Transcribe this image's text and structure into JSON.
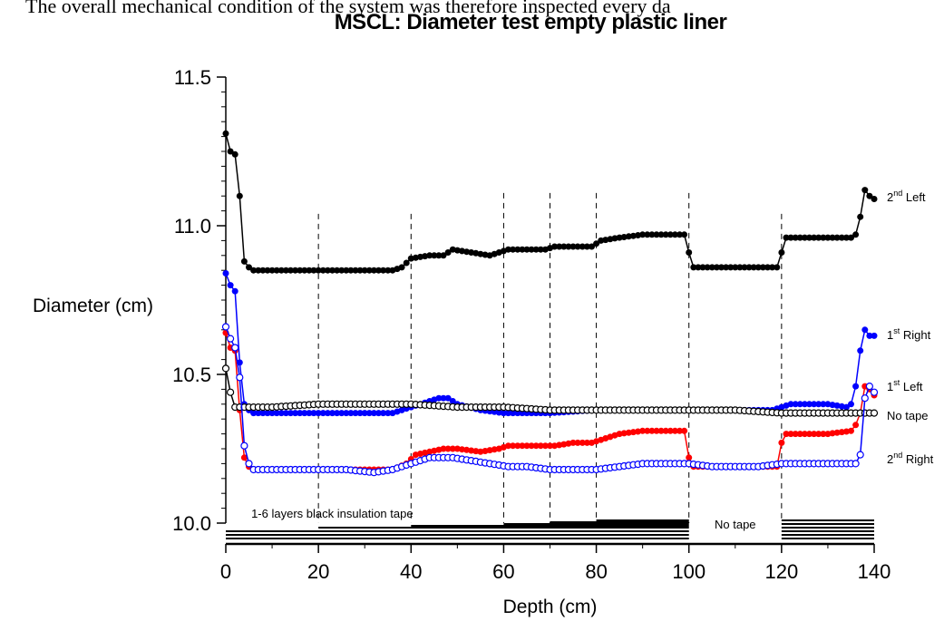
{
  "header_text": "The overall mechanical condition of the system was therefore inspected every da",
  "chart_data": {
    "type": "line",
    "title": "MSCL: Diameter test empty plastic liner",
    "xlabel": "Depth (cm)",
    "ylabel": "Diameter (cm)",
    "xlim": [
      0,
      140
    ],
    "ylim": [
      10.0,
      11.5
    ],
    "xticks": [
      "0",
      "20",
      "40",
      "60",
      "80",
      "100",
      "120",
      "140"
    ],
    "yticks": [
      "10.0",
      "10.5",
      "11.0",
      "11.5"
    ],
    "vlines": [
      20,
      40,
      60,
      70,
      80,
      100,
      120
    ],
    "annotations": {
      "tape": "1-6 layers black insulation tape",
      "notape": "No tape"
    },
    "series": [
      {
        "name": "2nd Left",
        "label_base": "2",
        "label_sup": "nd",
        "label_rest": " Left",
        "color": "#000000",
        "marker": "filled",
        "x": [
          0,
          1,
          2,
          3,
          4,
          5,
          6,
          10,
          20,
          30,
          36,
          38,
          40,
          44,
          47,
          49,
          53,
          57,
          59,
          61,
          65,
          69,
          71,
          75,
          79,
          81,
          85,
          90,
          95,
          99,
          100,
          101,
          105,
          110,
          115,
          119,
          120,
          121,
          125,
          130,
          135,
          136,
          137,
          138,
          139,
          140
        ],
        "y": [
          11.31,
          11.25,
          11.24,
          11.1,
          10.88,
          10.86,
          10.85,
          10.85,
          10.85,
          10.85,
          10.85,
          10.86,
          10.89,
          10.9,
          10.9,
          10.92,
          10.91,
          10.9,
          10.91,
          10.92,
          10.92,
          10.92,
          10.93,
          10.93,
          10.93,
          10.95,
          10.96,
          10.97,
          10.97,
          10.97,
          10.91,
          10.86,
          10.86,
          10.86,
          10.86,
          10.86,
          10.91,
          10.96,
          10.96,
          10.96,
          10.96,
          10.97,
          11.03,
          11.12,
          11.1,
          11.09
        ]
      },
      {
        "name": "1st Right",
        "label_base": "1",
        "label_sup": "st",
        "label_rest": " Right",
        "color": "#0000ff",
        "marker": "filled",
        "x": [
          0,
          1,
          2,
          3,
          4,
          5,
          6,
          10,
          20,
          30,
          36,
          40,
          44,
          46,
          48,
          50,
          55,
          60,
          70,
          80,
          90,
          100,
          110,
          118,
          120,
          122,
          126,
          130,
          134,
          135,
          136,
          137,
          138,
          139,
          140
        ],
        "y": [
          10.84,
          10.8,
          10.78,
          10.54,
          10.4,
          10.38,
          10.37,
          10.37,
          10.37,
          10.37,
          10.37,
          10.39,
          10.41,
          10.42,
          10.42,
          10.4,
          10.38,
          10.37,
          10.37,
          10.38,
          10.38,
          10.38,
          10.38,
          10.38,
          10.39,
          10.4,
          10.4,
          10.4,
          10.39,
          10.4,
          10.46,
          10.58,
          10.65,
          10.63,
          10.63
        ]
      },
      {
        "name": "1st Left",
        "label_base": "1",
        "label_sup": "st",
        "label_rest": " Left",
        "color": "#ff0000",
        "marker": "filled",
        "x": [
          0,
          1,
          2,
          3,
          4,
          5,
          6,
          10,
          20,
          30,
          36,
          39,
          41,
          44,
          47,
          50,
          55,
          59,
          61,
          65,
          69,
          71,
          75,
          79,
          81,
          85,
          90,
          95,
          99,
          100,
          101,
          105,
          110,
          115,
          119,
          120,
          121,
          125,
          130,
          135,
          136,
          137,
          138,
          139,
          140
        ],
        "y": [
          10.64,
          10.59,
          10.58,
          10.38,
          10.22,
          10.19,
          10.18,
          10.18,
          10.18,
          10.18,
          10.18,
          10.2,
          10.23,
          10.24,
          10.25,
          10.25,
          10.24,
          10.25,
          10.26,
          10.26,
          10.26,
          10.26,
          10.27,
          10.27,
          10.28,
          10.3,
          10.31,
          10.31,
          10.31,
          10.22,
          10.19,
          10.19,
          10.19,
          10.19,
          10.19,
          10.27,
          10.3,
          10.3,
          10.3,
          10.31,
          10.33,
          10.37,
          10.46,
          10.45,
          10.43
        ]
      },
      {
        "name": "No tape",
        "label_base": "No tape",
        "label_sup": "",
        "label_rest": "",
        "color": "#000000",
        "marker": "open",
        "x": [
          0,
          1,
          2,
          4,
          6,
          10,
          20,
          30,
          40,
          50,
          60,
          70,
          80,
          90,
          100,
          110,
          120,
          130,
          140
        ],
        "y": [
          10.52,
          10.44,
          10.39,
          10.39,
          10.39,
          10.39,
          10.4,
          10.4,
          10.4,
          10.39,
          10.39,
          10.38,
          10.38,
          10.38,
          10.38,
          10.38,
          10.37,
          10.37,
          10.37
        ]
      },
      {
        "name": "2nd Right",
        "label_base": "2",
        "label_sup": "nd",
        "label_rest": " Right",
        "color": "#0000ff",
        "marker": "open",
        "x": [
          0,
          1,
          2,
          3,
          4,
          5,
          6,
          10,
          20,
          26,
          32,
          36,
          40,
          44,
          47,
          49,
          53,
          57,
          61,
          65,
          70,
          75,
          80,
          85,
          90,
          95,
          100,
          105,
          110,
          115,
          120,
          125,
          130,
          135,
          136,
          137,
          138,
          139,
          140
        ],
        "y": [
          10.66,
          10.62,
          10.59,
          10.49,
          10.26,
          10.2,
          10.18,
          10.18,
          10.18,
          10.18,
          10.17,
          10.18,
          10.2,
          10.22,
          10.22,
          10.22,
          10.21,
          10.2,
          10.19,
          10.19,
          10.18,
          10.18,
          10.18,
          10.19,
          10.2,
          10.2,
          10.2,
          10.19,
          10.19,
          10.19,
          10.2,
          10.2,
          10.2,
          10.2,
          10.2,
          10.23,
          10.42,
          10.46,
          10.44
        ]
      }
    ]
  }
}
